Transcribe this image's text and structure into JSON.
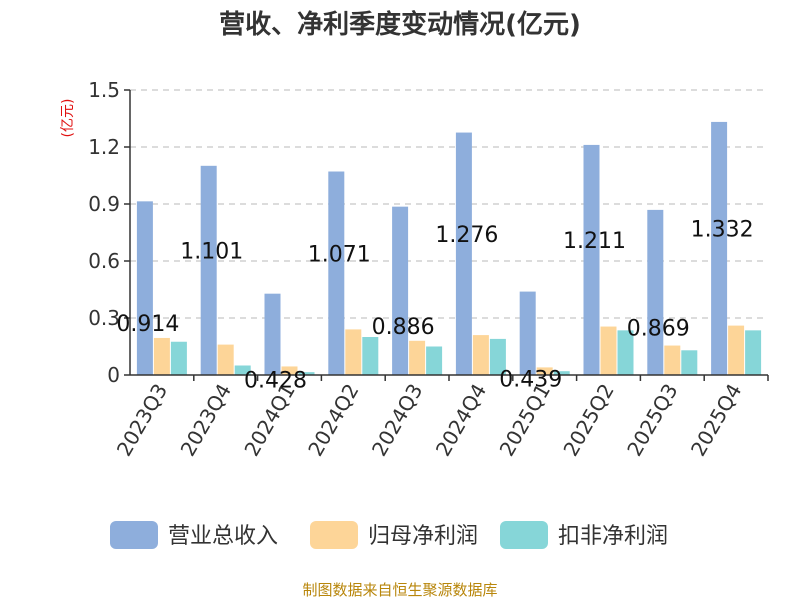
{
  "chart_data": {
    "type": "bar",
    "title": "营收、净利季度变动情况(亿元)",
    "ylabel": "(亿元)",
    "xlabel": "",
    "ylim": [
      0,
      1.5
    ],
    "yticks": [
      0,
      0.3,
      0.6,
      0.9,
      1.2,
      1.5
    ],
    "ytick_labels": [
      "0",
      "0.3",
      "0.6",
      "0.9",
      "1.2",
      "1.5"
    ],
    "grid": true,
    "legend_position": "bottom",
    "categories": [
      "2023Q3",
      "2023Q4",
      "2024Q1",
      "2024Q2",
      "2024Q3",
      "2024Q4",
      "2025Q1",
      "2025Q2",
      "2025Q3",
      "2025Q4"
    ],
    "series": [
      {
        "name": "营业总收入",
        "color": "#8eaedc",
        "values": [
          0.914,
          1.101,
          0.428,
          1.071,
          0.886,
          1.276,
          0.439,
          1.211,
          0.869,
          1.332
        ],
        "labels": [
          "0.914",
          "1.101",
          "0.428",
          "1.071",
          "0.886",
          "1.276",
          "0.439",
          "1.211",
          "0.869",
          "1.332"
        ]
      },
      {
        "name": "归母净利润",
        "color": "#fdd598",
        "values": [
          0.195,
          0.16,
          0.045,
          0.24,
          0.18,
          0.21,
          0.04,
          0.255,
          0.155,
          0.26
        ]
      },
      {
        "name": "扣非净利润",
        "color": "#86d6d8",
        "values": [
          0.175,
          0.05,
          0.015,
          0.2,
          0.15,
          0.19,
          0.02,
          0.235,
          0.13,
          0.235
        ]
      }
    ]
  },
  "source_text": "制图数据来自恒生聚源数据库"
}
